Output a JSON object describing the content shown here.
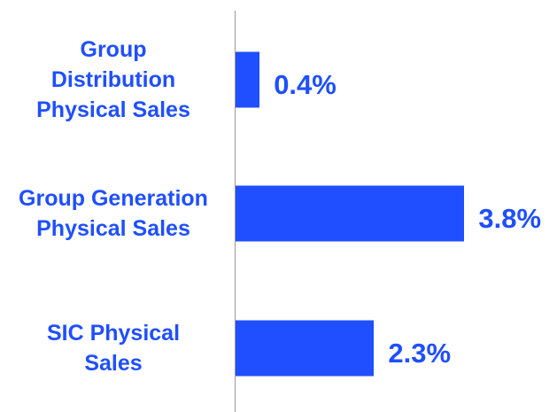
{
  "chart_data": {
    "type": "bar",
    "orientation": "horizontal",
    "categories": [
      "Group Distribution Physical Sales",
      "Group Generation Physical Sales",
      "SIC Physical Sales"
    ],
    "values": [
      0.4,
      3.8,
      2.3
    ],
    "value_labels": [
      "0.4%",
      "3.8%",
      "2.3%"
    ],
    "color": "#1f4fff"
  }
}
